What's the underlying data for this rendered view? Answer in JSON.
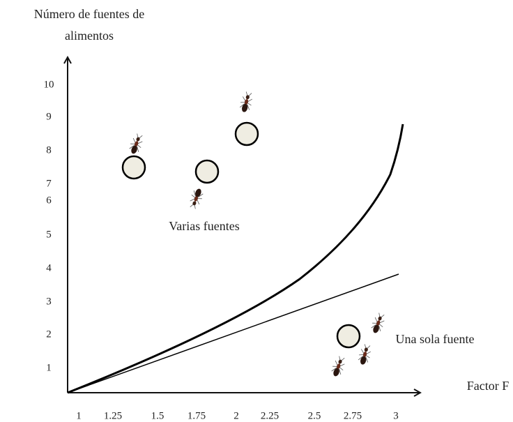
{
  "y_axis": {
    "label_line1": "Número de fuentes de",
    "label_line2": "alimentos",
    "ticks": [
      "10",
      "9",
      "8",
      "7",
      "6",
      "5",
      "4",
      "3",
      "2",
      "1"
    ]
  },
  "x_axis": {
    "label": "Factor F",
    "ticks": [
      "1",
      "1.25",
      "1.5",
      "1.75",
      "2",
      "2.25",
      "2.5",
      "2.75",
      "3"
    ]
  },
  "regions": {
    "upper": "Varias fuentes",
    "lower": "Una sola fuente"
  }
}
